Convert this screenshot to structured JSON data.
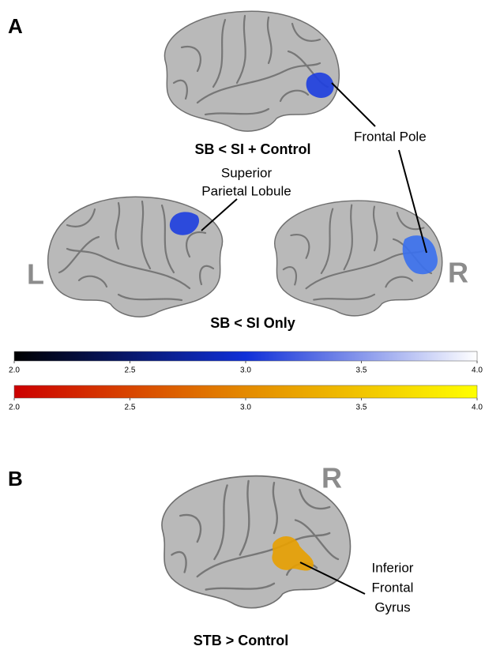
{
  "panels": [
    {
      "label": "A",
      "captions": [
        "SB < SI + Control",
        "SB < SI Only"
      ],
      "annotations": [
        "Frontal Pole",
        "Superior",
        "Parietal Lobule"
      ],
      "hemispheres": [
        "L",
        "R"
      ]
    },
    {
      "label": "B",
      "captions": [
        "STB > Control"
      ],
      "annotations": [
        "Inferior",
        "Frontal",
        "Gyrus"
      ],
      "hemispheres": [
        "R"
      ]
    }
  ],
  "colorbars": [
    {
      "colors": [
        "#000000",
        "#1030d8",
        "#ffffff"
      ],
      "ticks": [
        {
          "value": 2,
          "label": "2.0"
        },
        {
          "value": 2.5,
          "label": "2.5"
        },
        {
          "value": 3,
          "label": "3.0"
        },
        {
          "value": 3.5,
          "label": "3.5"
        },
        {
          "value": 4,
          "label": "4.0"
        }
      ]
    },
    {
      "colors": [
        "#cc0000",
        "#e48a00",
        "#ffff00"
      ],
      "ticks": [
        {
          "value": 2,
          "label": "2.0"
        },
        {
          "value": 2.5,
          "label": "2.5"
        },
        {
          "value": 3,
          "label": "3.0"
        },
        {
          "value": 3.5,
          "label": "3.5"
        },
        {
          "value": 4,
          "label": "4.0"
        }
      ]
    }
  ]
}
